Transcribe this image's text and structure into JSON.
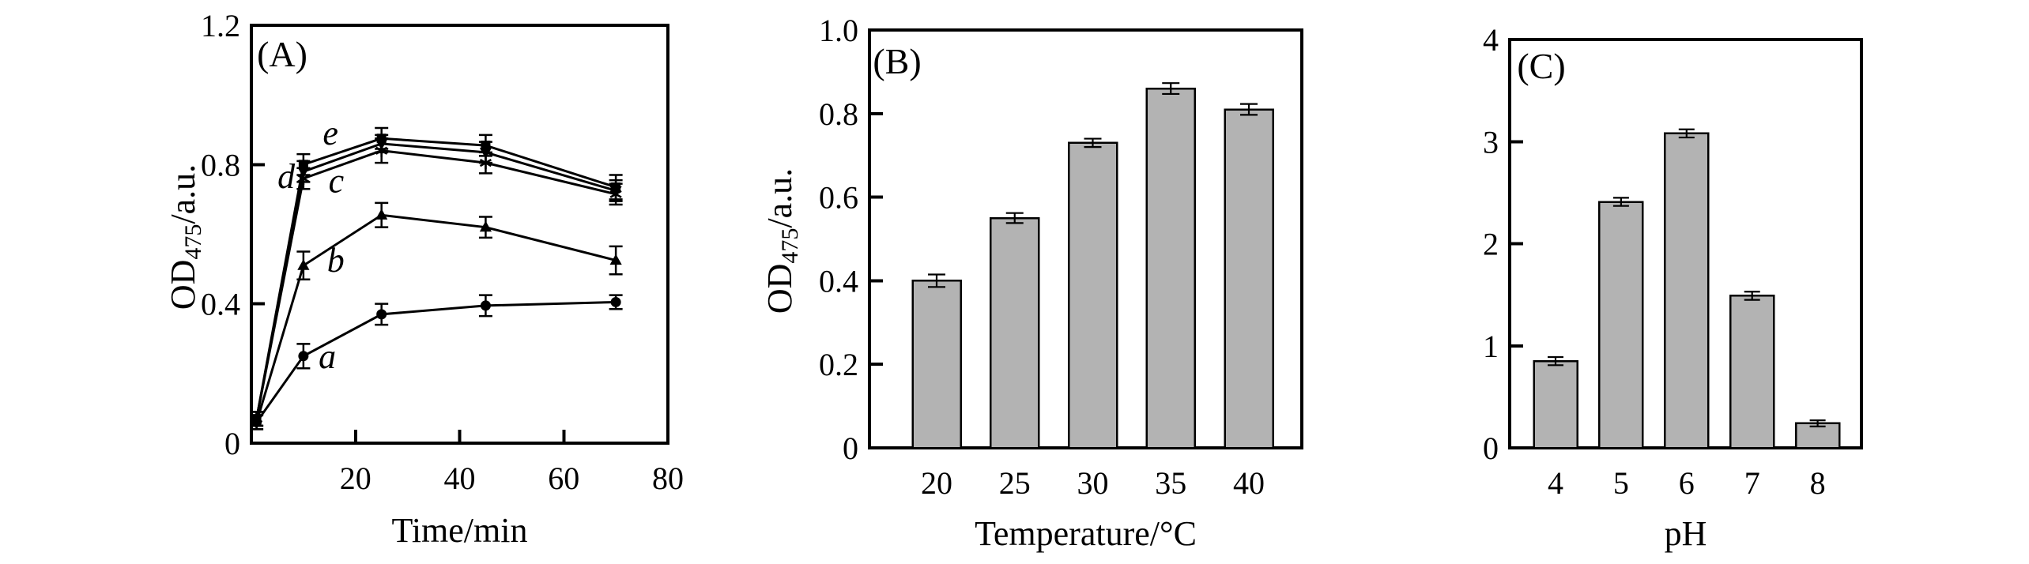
{
  "colors": {
    "ink": "#000000",
    "bar_fill": "#b3b3b3",
    "background": "#ffffff"
  },
  "chart_data": [
    {
      "id": "panel-a",
      "type": "line",
      "panel_label": "(A)",
      "xlabel": "Time/min",
      "ylabel": {
        "main": "OD",
        "sub": "475",
        "rest": "/a.u."
      },
      "xlim": [
        0,
        80
      ],
      "ylim": [
        0,
        1.2
      ],
      "xticks": {
        "values": [
          0,
          20,
          40,
          60,
          80
        ],
        "labels": [
          "",
          "20",
          "40",
          "60",
          "80"
        ]
      },
      "yticks": {
        "values": [
          0,
          0.4,
          0.8,
          1.2
        ],
        "labels": [
          "0",
          "0.4",
          "0.8",
          "1.2"
        ]
      },
      "grid": false,
      "legend": "inline curve letters a-e",
      "x": [
        1,
        10,
        25,
        45,
        70
      ],
      "series": [
        {
          "name": "a",
          "marker": "circle",
          "values": [
            0.06,
            0.25,
            0.37,
            0.395,
            0.405
          ],
          "errors": [
            0.02,
            0.035,
            0.03,
            0.03,
            0.02
          ],
          "label_at": [
            14.6,
            0.215
          ]
        },
        {
          "name": "b",
          "marker": "triangle-up",
          "values": [
            0.06,
            0.51,
            0.655,
            0.62,
            0.525
          ],
          "errors": [
            0.02,
            0.04,
            0.035,
            0.03,
            0.04
          ],
          "label_at": [
            16.2,
            0.492
          ]
        },
        {
          "name": "c",
          "marker": "star",
          "values": [
            0.07,
            0.76,
            0.84,
            0.805,
            0.715
          ],
          "errors": [
            0.02,
            0.03,
            0.035,
            0.03,
            0.03
          ],
          "label_at": [
            16.3,
            0.72
          ]
        },
        {
          "name": "d",
          "marker": "triangle-down",
          "values": [
            0.07,
            0.78,
            0.86,
            0.835,
            0.725
          ],
          "errors": [
            0.02,
            0.03,
            0.025,
            0.03,
            0.03
          ],
          "label_at": [
            6.7,
            0.733
          ]
        },
        {
          "name": "e",
          "marker": "square",
          "values": [
            0.07,
            0.8,
            0.875,
            0.855,
            0.735
          ],
          "errors": [
            0.02,
            0.03,
            0.03,
            0.03,
            0.035
          ],
          "label_at": [
            15.2,
            0.858
          ]
        }
      ]
    },
    {
      "id": "panel-b",
      "type": "bar",
      "panel_label": "(B)",
      "xlabel": "Temperature/°C",
      "ylabel": {
        "main": "OD",
        "sub": "475",
        "rest": "/a.u."
      },
      "ylim": [
        0,
        1.0
      ],
      "yticks": {
        "values": [
          0,
          0.2,
          0.4,
          0.6,
          0.8,
          1.0
        ],
        "labels": [
          "0",
          "0.2",
          "0.4",
          "0.6",
          "0.8",
          "1.0"
        ]
      },
      "grid": false,
      "categories": [
        "20",
        "25",
        "30",
        "35",
        "40"
      ],
      "values": [
        0.4,
        0.55,
        0.73,
        0.86,
        0.81
      ],
      "errors": [
        0.015,
        0.012,
        0.01,
        0.013,
        0.013
      ]
    },
    {
      "id": "panel-c",
      "type": "bar",
      "panel_label": "(C)",
      "xlabel": "pH",
      "ylabel": null,
      "ylim": [
        0,
        4
      ],
      "yticks": {
        "values": [
          0,
          1,
          2,
          3,
          4
        ],
        "labels": [
          "0",
          "1",
          "2",
          "3",
          "4"
        ]
      },
      "grid": false,
      "categories": [
        "4",
        "5",
        "6",
        "7",
        "8"
      ],
      "values": [
        0.85,
        2.41,
        3.08,
        1.49,
        0.24
      ],
      "errors": [
        0.04,
        0.04,
        0.04,
        0.04,
        0.03
      ]
    }
  ]
}
